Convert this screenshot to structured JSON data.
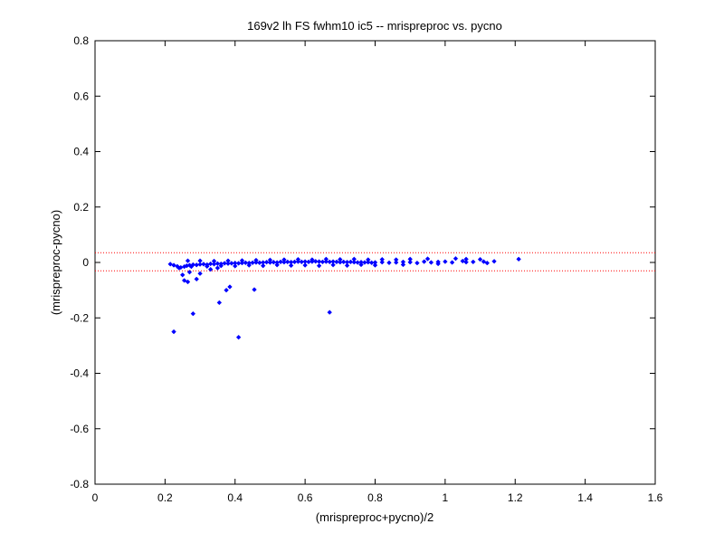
{
  "chart_data": {
    "type": "scatter",
    "title": "169v2 lh FS fwhm10 ic5 -- mrispreproc vs. pycno",
    "xlabel": "(mrispreproc+pycno)/2",
    "ylabel": "(mrispreproc-pycno)",
    "xlim": [
      0,
      1.6
    ],
    "ylim": [
      -0.8,
      0.8
    ],
    "xticks": [
      "0",
      "0.2",
      "0.4",
      "0.6",
      "0.8",
      "1",
      "1.2",
      "1.4",
      "1.6"
    ],
    "yticks": [
      "0.8",
      "0.6",
      "0.4",
      "0.2",
      "0",
      "-0.2",
      "-0.4",
      "-0.6",
      "-0.8"
    ],
    "grid": false,
    "limit_lines": [
      0.035,
      -0.03
    ],
    "colors": {
      "points": "#0000ff",
      "limit_lines": "#ff0000",
      "axes": "#000000"
    },
    "series": [
      {
        "values_xy": [
          [
            0.215,
            -0.006
          ],
          [
            0.225,
            -0.01
          ],
          [
            0.235,
            -0.014
          ],
          [
            0.24,
            -0.02
          ],
          [
            0.245,
            -0.018
          ],
          [
            0.255,
            -0.015
          ],
          [
            0.262,
            -0.012
          ],
          [
            0.27,
            -0.01
          ],
          [
            0.28,
            -0.008
          ],
          [
            0.29,
            -0.009
          ],
          [
            0.3,
            -0.007
          ],
          [
            0.31,
            -0.006
          ],
          [
            0.32,
            -0.008
          ],
          [
            0.33,
            -0.005
          ],
          [
            0.34,
            -0.006
          ],
          [
            0.35,
            -0.004
          ],
          [
            0.36,
            -0.005
          ],
          [
            0.37,
            -0.003
          ],
          [
            0.38,
            -0.004
          ],
          [
            0.39,
            -0.003
          ],
          [
            0.4,
            -0.002
          ],
          [
            0.41,
            -0.003
          ],
          [
            0.42,
            -0.002
          ],
          [
            0.43,
            -0.001
          ],
          [
            0.44,
            -0.002
          ],
          [
            0.45,
            -0.001
          ],
          [
            0.46,
            0.0
          ],
          [
            0.47,
            -0.001
          ],
          [
            0.48,
            0.0
          ],
          [
            0.49,
            0.001
          ],
          [
            0.5,
            0.0
          ],
          [
            0.51,
            0.001
          ],
          [
            0.52,
            0.0
          ],
          [
            0.53,
            0.002
          ],
          [
            0.54,
            0.001
          ],
          [
            0.55,
            0.002
          ],
          [
            0.56,
            0.001
          ],
          [
            0.57,
            0.002
          ],
          [
            0.58,
            0.003
          ],
          [
            0.59,
            0.002
          ],
          [
            0.6,
            0.003
          ],
          [
            0.61,
            0.002
          ],
          [
            0.62,
            0.003
          ],
          [
            0.63,
            0.004
          ],
          [
            0.64,
            0.003
          ],
          [
            0.65,
            0.002
          ],
          [
            0.66,
            0.003
          ],
          [
            0.67,
            0.002
          ],
          [
            0.68,
            0.003
          ],
          [
            0.69,
            0.002
          ],
          [
            0.7,
            0.001
          ],
          [
            0.71,
            0.002
          ],
          [
            0.72,
            0.001
          ],
          [
            0.73,
            0.002
          ],
          [
            0.74,
            0.001
          ],
          [
            0.75,
            0.0
          ],
          [
            0.76,
            0.001
          ],
          [
            0.77,
            0.0
          ],
          [
            0.78,
            0.001
          ],
          [
            0.79,
            -0.001
          ],
          [
            0.8,
            0.0
          ],
          [
            0.82,
            0.001
          ],
          [
            0.84,
            -0.001
          ],
          [
            0.86,
            0.0
          ],
          [
            0.88,
            0.002
          ],
          [
            0.9,
            0.001
          ],
          [
            0.92,
            -0.002
          ],
          [
            0.94,
            0.003
          ],
          [
            0.96,
            0.0
          ],
          [
            0.98,
            0.002
          ],
          [
            1.0,
            0.003
          ],
          [
            1.02,
            0.0
          ],
          [
            1.05,
            0.005
          ],
          [
            1.08,
            0.002
          ],
          [
            1.11,
            0.003
          ],
          [
            1.14,
            0.004
          ],
          [
            0.44,
            -0.01
          ],
          [
            0.48,
            -0.012
          ],
          [
            0.52,
            -0.009
          ],
          [
            0.56,
            -0.011
          ],
          [
            0.6,
            -0.01
          ],
          [
            0.64,
            -0.012
          ],
          [
            0.68,
            -0.009
          ],
          [
            0.72,
            -0.011
          ],
          [
            0.76,
            -0.008
          ],
          [
            0.8,
            -0.01
          ],
          [
            0.32,
            -0.014
          ],
          [
            0.36,
            -0.012
          ],
          [
            0.4,
            -0.013
          ],
          [
            0.3,
            0.006
          ],
          [
            0.34,
            0.005
          ],
          [
            0.38,
            0.006
          ],
          [
            0.42,
            0.007
          ],
          [
            0.46,
            0.008
          ],
          [
            0.5,
            0.009
          ],
          [
            0.54,
            0.01
          ],
          [
            0.58,
            0.011
          ],
          [
            0.62,
            0.01
          ],
          [
            0.66,
            0.012
          ],
          [
            0.7,
            0.011
          ],
          [
            0.74,
            0.012
          ],
          [
            0.78,
            0.01
          ],
          [
            0.82,
            0.011
          ],
          [
            0.86,
            0.01
          ],
          [
            0.9,
            0.012
          ],
          [
            0.95,
            0.013
          ],
          [
            1.03,
            0.014
          ],
          [
            1.06,
            0.012
          ],
          [
            1.1,
            0.011
          ],
          [
            1.21,
            0.012
          ],
          [
            0.265,
            0.006
          ],
          [
            0.275,
            -0.015
          ],
          [
            0.25,
            -0.045
          ],
          [
            0.255,
            -0.065
          ],
          [
            0.265,
            -0.07
          ],
          [
            0.29,
            -0.06
          ],
          [
            0.3,
            -0.04
          ],
          [
            0.27,
            -0.035
          ],
          [
            0.28,
            -0.185
          ],
          [
            0.225,
            -0.25
          ],
          [
            0.355,
            -0.145
          ],
          [
            0.375,
            -0.1
          ],
          [
            0.385,
            -0.088
          ],
          [
            0.41,
            -0.27
          ],
          [
            0.455,
            -0.098
          ],
          [
            0.67,
            -0.18
          ],
          [
            0.33,
            -0.025
          ],
          [
            0.35,
            -0.02
          ],
          [
            0.98,
            -0.005
          ],
          [
            1.12,
            -0.002
          ],
          [
            1.06,
            0.001
          ],
          [
            0.88,
            -0.008
          ]
        ]
      }
    ]
  }
}
